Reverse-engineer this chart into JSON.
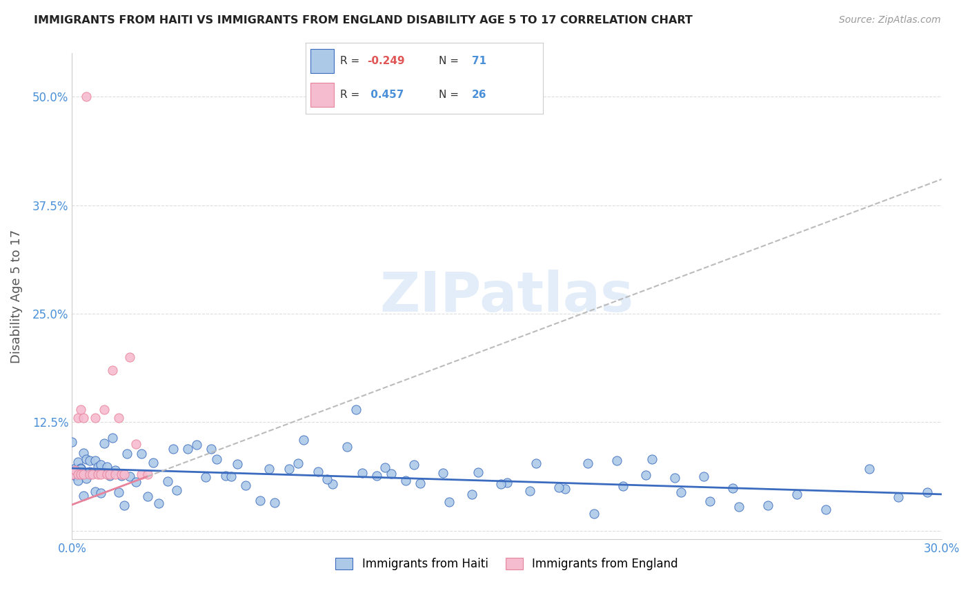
{
  "title": "IMMIGRANTS FROM HAITI VS IMMIGRANTS FROM ENGLAND DISABILITY AGE 5 TO 17 CORRELATION CHART",
  "source": "Source: ZipAtlas.com",
  "ylabel": "Disability Age 5 to 17",
  "xlabel_haiti": "Immigrants from Haiti",
  "xlabel_england": "Immigrants from England",
  "xmin": 0.0,
  "xmax": 0.3,
  "ymin": -0.01,
  "ymax": 0.55,
  "ytick_vals": [
    0.0,
    0.125,
    0.25,
    0.375,
    0.5
  ],
  "ytick_labels": [
    "",
    "12.5%",
    "25.0%",
    "37.5%",
    "50.0%"
  ],
  "xtick_vals": [
    0.0,
    0.05,
    0.1,
    0.15,
    0.2,
    0.25,
    0.3
  ],
  "xtick_labels": [
    "0.0%",
    "",
    "",
    "",
    "",
    "",
    "30.0%"
  ],
  "haiti_R": -0.249,
  "haiti_N": 71,
  "england_R": 0.457,
  "england_N": 26,
  "haiti_color": "#adc9e8",
  "england_color": "#f5bcd0",
  "haiti_line_color": "#3a6bbf",
  "england_line_color": "#e8829a",
  "watermark_color": "#ccdff5",
  "background_color": "#ffffff",
  "grid_color": "#dddddd",
  "title_color": "#222222",
  "source_color": "#999999",
  "tick_color": "#4a90d9",
  "ylabel_color": "#555555",
  "legend_R_color": "#333333",
  "legend_val_neg_color": "#e05555",
  "legend_val_pos_color": "#4a90d9",
  "england_line_intercept": 0.03,
  "england_line_slope": 1.25,
  "haiti_line_intercept": 0.072,
  "haiti_line_slope": -0.1,
  "england_dash_color": "#bbbbbb"
}
